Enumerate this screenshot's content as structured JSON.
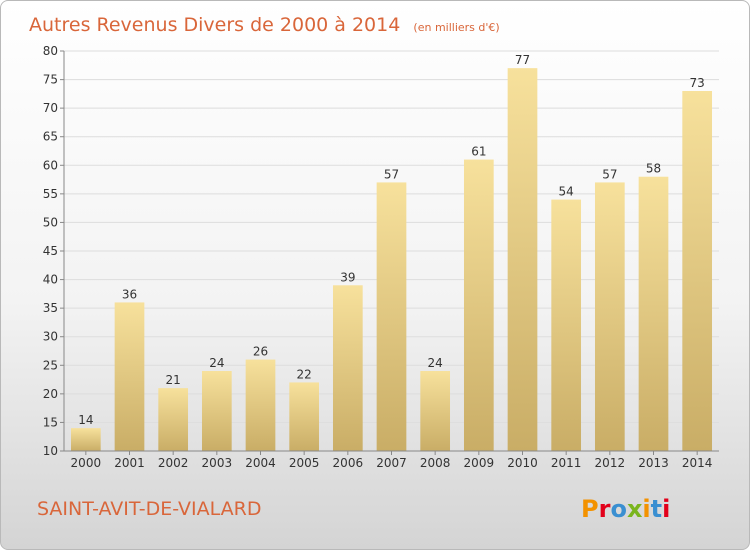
{
  "chart_data": {
    "type": "bar",
    "title": "Autres Revenus Divers de 2000 à 2014",
    "subtitle": "(en milliers d'€)",
    "categories": [
      "2000",
      "2001",
      "2002",
      "2003",
      "2004",
      "2005",
      "2006",
      "2007",
      "2008",
      "2009",
      "2010",
      "2011",
      "2012",
      "2013",
      "2014"
    ],
    "values": [
      14,
      36,
      21,
      24,
      26,
      22,
      39,
      57,
      24,
      61,
      77,
      54,
      57,
      58,
      73
    ],
    "ylim": [
      10,
      80
    ],
    "yticks": [
      10,
      15,
      20,
      25,
      30,
      35,
      40,
      45,
      50,
      55,
      60,
      65,
      70,
      75,
      80
    ],
    "grid": true,
    "bar_color": "#e8cf86"
  },
  "footer": {
    "commune": "SAINT-AVIT-DE-VIALARD",
    "logo": "Proxiti"
  },
  "colors": {
    "accent": "#d9663a",
    "logo_letters": [
      "#f39200",
      "#e2001a",
      "#3a8fd1",
      "#7ab51d",
      "#f39200",
      "#3a8fd1",
      "#e2001a"
    ]
  }
}
